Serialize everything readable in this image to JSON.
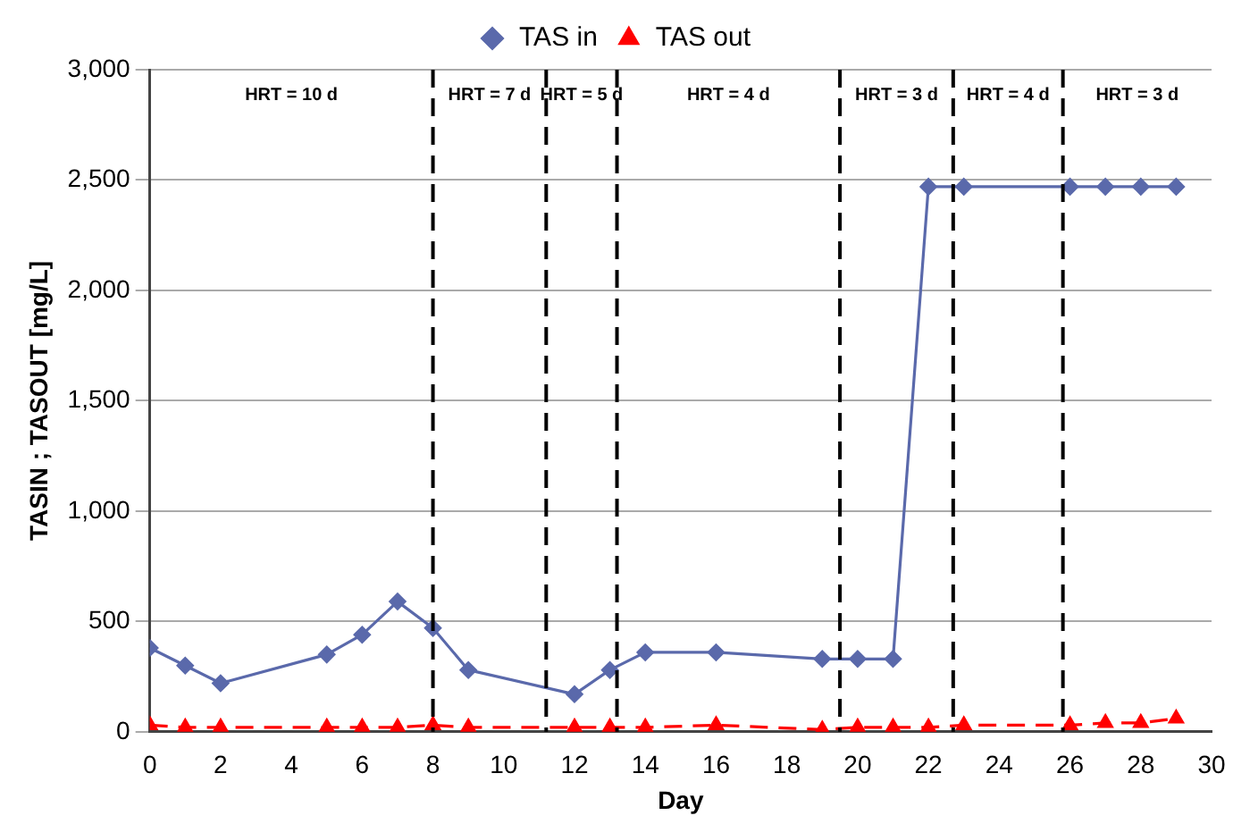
{
  "chart_data": {
    "type": "line",
    "xlabel": "Day",
    "ylabel": "TASIN ; TASOUT [mg/L]",
    "x": [
      0,
      1,
      2,
      5,
      6,
      7,
      8,
      9,
      12,
      13,
      14,
      16,
      19,
      20,
      21,
      22,
      23,
      26,
      27,
      28,
      29
    ],
    "series": [
      {
        "name": "TAS in",
        "color": "#5a69ab",
        "marker": "diamond",
        "line_style": "solid",
        "values": [
          380,
          300,
          220,
          350,
          440,
          590,
          470,
          280,
          170,
          280,
          360,
          360,
          330,
          330,
          330,
          2470,
          2470,
          2470,
          2470,
          2470,
          2470
        ]
      },
      {
        "name": "TAS out",
        "color": "#ff0000",
        "marker": "triangle",
        "line_style": "dashed",
        "values": [
          30,
          20,
          20,
          20,
          20,
          20,
          30,
          20,
          20,
          20,
          20,
          30,
          10,
          20,
          20,
          20,
          30,
          30,
          40,
          40,
          60
        ]
      }
    ],
    "xlim": [
      0,
      30
    ],
    "xticks": [
      0,
      2,
      4,
      6,
      8,
      10,
      12,
      14,
      16,
      18,
      20,
      22,
      24,
      26,
      28,
      30
    ],
    "ylim": [
      0,
      3000
    ],
    "yticks": [
      0,
      {
        "value": 500,
        "label": "500"
      },
      {
        "value": 1000,
        "label": "1,000"
      },
      {
        "value": 1500,
        "label": "1,500"
      },
      {
        "value": 2000,
        "label": "2,000"
      },
      {
        "value": 2500,
        "label": "2,500"
      },
      {
        "value": 3000,
        "label": "3,000"
      }
    ],
    "grid": "y",
    "legend": "top",
    "ref_lines": [
      {
        "axis": "x",
        "value": 8,
        "line_style": "dashed",
        "color": "#000000"
      },
      {
        "axis": "x",
        "value": 11.2,
        "line_style": "dashed",
        "color": "#000000"
      },
      {
        "axis": "x",
        "value": 13.2,
        "line_style": "dashed",
        "color": "#000000"
      },
      {
        "axis": "x",
        "value": 19.5,
        "line_style": "dashed",
        "color": "#000000"
      },
      {
        "axis": "x",
        "value": 22.7,
        "line_style": "dashed",
        "color": "#000000"
      },
      {
        "axis": "x",
        "value": 25.8,
        "line_style": "dashed",
        "color": "#000000"
      }
    ],
    "annotations": [
      "HRT = 10 d",
      "HRT = 7 d",
      "HRT = 5 d",
      "HRT = 4 d",
      "HRT = 3 d",
      "HRT = 4 d",
      "HRT = 3 d"
    ]
  }
}
